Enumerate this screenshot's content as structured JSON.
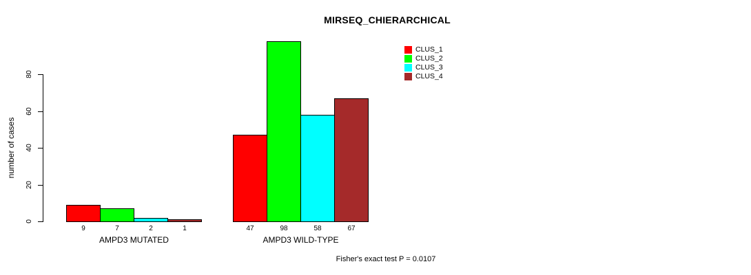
{
  "chart_data": {
    "type": "bar",
    "title": "MIRSEQ_CHIERARCHICAL",
    "xlabel": "",
    "ylabel": "number of cases",
    "categories": [
      "AMPD3 MUTATED",
      "AMPD3 WILD-TYPE"
    ],
    "series": [
      {
        "name": "CLUS_1",
        "color": "#FF0000",
        "values": [
          9,
          47
        ]
      },
      {
        "name": "CLUS_2",
        "color": "#00FF00",
        "values": [
          7,
          98
        ]
      },
      {
        "name": "CLUS_3",
        "color": "#00FFFF",
        "values": [
          2,
          58
        ]
      },
      {
        "name": "CLUS_4",
        "color": "#A52A2A",
        "values": [
          1,
          67
        ]
      }
    ],
    "bar_value_labels_shown": true,
    "yticks": [
      0,
      20,
      40,
      60,
      80
    ],
    "ylim": [
      0,
      98
    ],
    "grid": false,
    "legend_position": "top-right",
    "annotation": "Fisher's exact test P = 0.0107",
    "axis_color": "#000000",
    "bar_border_color": "#000000"
  }
}
